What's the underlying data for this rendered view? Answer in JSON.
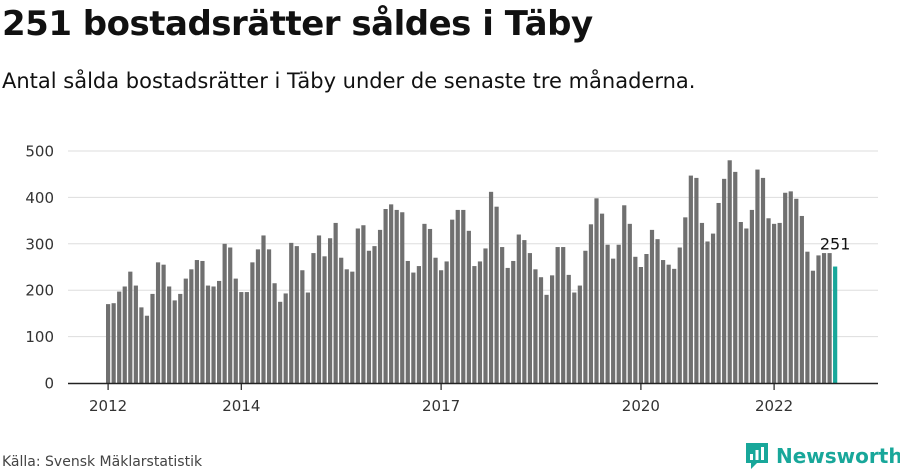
{
  "header": {
    "title": "251 bostadsrätter såldes i Täby",
    "subtitle": "Antal sålda bostadsrätter i Täby under de senaste tre månaderna."
  },
  "footer": {
    "source": "Källa: Svensk Mäklarstatistik",
    "brand": "Newsworthy"
  },
  "colors": {
    "bar": "#707070",
    "highlight": "#18a79a",
    "grid": "#dddddd",
    "axis": "#222222"
  },
  "icons": [
    "newsworthy-logo-icon"
  ],
  "chart_data": {
    "type": "bar",
    "title": "",
    "xlabel": "",
    "ylabel": "",
    "ylim": [
      0,
      500
    ],
    "yticks": [
      0,
      100,
      200,
      300,
      400,
      500
    ],
    "xticks": [
      {
        "label": "2012",
        "index": 0
      },
      {
        "label": "2014",
        "index": 24
      },
      {
        "label": "2017",
        "index": 60
      },
      {
        "label": "2020",
        "index": 96
      },
      {
        "label": "2022",
        "index": 120
      }
    ],
    "grid": true,
    "legend": "none",
    "highlight_label": "251",
    "series": [
      {
        "name": "",
        "start": "2012-01",
        "frequency": "monthly",
        "values": [
          170,
          172,
          197,
          208,
          240,
          210,
          163,
          145,
          192,
          260,
          255,
          208,
          178,
          192,
          225,
          245,
          265,
          263,
          210,
          208,
          220,
          300,
          292,
          225,
          196,
          196,
          260,
          288,
          318,
          288,
          215,
          175,
          193,
          302,
          295,
          243,
          195,
          280,
          318,
          273,
          312,
          345,
          270,
          245,
          240,
          333,
          340,
          285,
          295,
          330,
          375,
          385,
          373,
          368,
          263,
          238,
          252,
          343,
          332,
          270,
          243,
          262,
          352,
          373,
          373,
          328,
          252,
          262,
          290,
          412,
          380,
          293,
          248,
          263,
          320,
          308,
          280,
          245,
          228,
          190,
          232,
          293,
          293,
          233,
          195,
          210,
          285,
          342,
          398,
          365,
          298,
          268,
          298,
          383,
          343,
          272,
          250,
          278,
          330,
          310,
          265,
          255,
          246,
          292,
          357,
          447,
          442,
          345,
          305,
          322,
          388,
          440,
          480,
          455,
          347,
          333,
          373,
          460,
          442,
          355,
          343,
          345,
          410,
          413,
          397,
          360,
          283,
          242,
          275,
          280,
          280,
          251
        ]
      }
    ]
  }
}
